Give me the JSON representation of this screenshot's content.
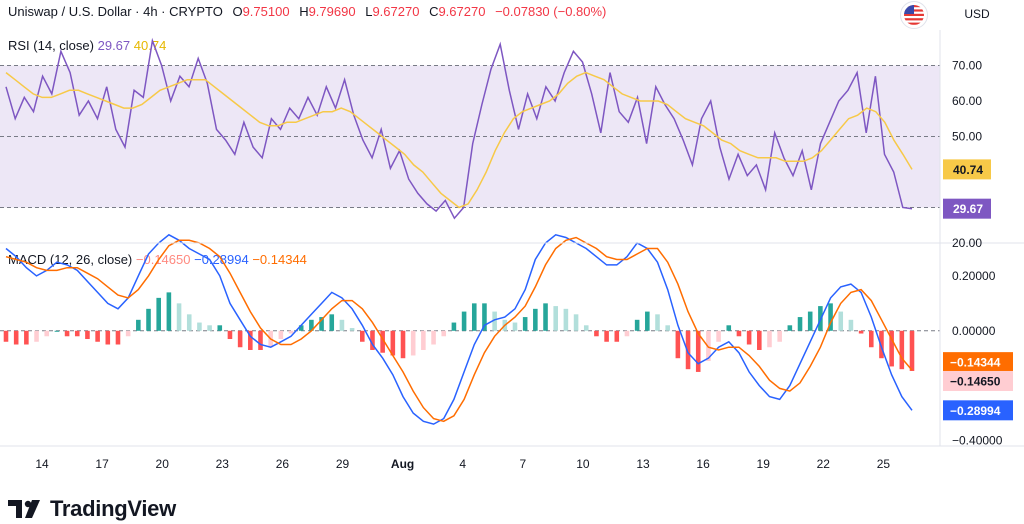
{
  "header": {
    "symbol": "Uniswap / U.S. Dollar · 4h · CRYPTO",
    "o_label": "O",
    "o_value": "9.75100",
    "h_label": "H",
    "h_value": "9.79690",
    "l_label": "L",
    "l_value": "9.67270",
    "c_label": "C",
    "c_value": "9.67270",
    "change": "−0.07830 (−0.80%)",
    "currency": "USD"
  },
  "colors": {
    "rsi": "#7e57c2",
    "rsi_ma": "#f7c948",
    "macd": "#2962ff",
    "signal": "#ff6d00",
    "hist_pos_strong": "#26a69a",
    "hist_pos_weak": "#b2dfdb",
    "hist_neg_strong": "#ff5252",
    "hist_neg_weak": "#ffcdd2",
    "rsi_band": "#ede7f6"
  },
  "chart_data": [
    {
      "type": "line",
      "panel": "RSI",
      "legend": {
        "name": "RSI (14, close)",
        "value1": "29.67",
        "value2": "40.74"
      },
      "ylim": [
        20,
        80
      ],
      "y_ticks": [
        "70.00",
        "60.00",
        "50.00",
        "20.00"
      ],
      "band": [
        30,
        70
      ],
      "levels": [
        70,
        50,
        30
      ],
      "last_labels": {
        "rsi": "29.67",
        "ma": "40.74"
      },
      "x_ticks": [
        "14",
        "17",
        "20",
        "23",
        "26",
        "29",
        "Aug",
        "4",
        "7",
        "10",
        "13",
        "16",
        "19",
        "22",
        "25"
      ],
      "series": [
        {
          "role": "rsi",
          "values": [
            64,
            55,
            61,
            57,
            67,
            62,
            74,
            68,
            56,
            60,
            55,
            64,
            52,
            47,
            63,
            61,
            77,
            70,
            60,
            67,
            64,
            72,
            65,
            52,
            49,
            45,
            54,
            47,
            44,
            55,
            52,
            58,
            55,
            61,
            56,
            64,
            58,
            66,
            56,
            49,
            44,
            52,
            41,
            46,
            38,
            34,
            31,
            29,
            32,
            27,
            30,
            48,
            59,
            69,
            76,
            63,
            52,
            62,
            55,
            64,
            60,
            68,
            74,
            71,
            62,
            51,
            68,
            57,
            54,
            61,
            48,
            64,
            59,
            55,
            49,
            42,
            55,
            60,
            47,
            38,
            45,
            39,
            42,
            35,
            51,
            44,
            39,
            46,
            35,
            48,
            54,
            60,
            63,
            68,
            51,
            67,
            45,
            40,
            30,
            29.67
          ]
        },
        {
          "role": "ma",
          "values": [
            68,
            66,
            64,
            62,
            61,
            61,
            62,
            63,
            63,
            62,
            61,
            60,
            59,
            58,
            58,
            59,
            61,
            63,
            64,
            65,
            66,
            66,
            66,
            64,
            62,
            60,
            58,
            56,
            54,
            53,
            53,
            54,
            54,
            55,
            56,
            57,
            57,
            58,
            57,
            55,
            53,
            51,
            49,
            47,
            45,
            42,
            40,
            37,
            34,
            32,
            30,
            31,
            35,
            40,
            46,
            51,
            55,
            57,
            58,
            59,
            60,
            62,
            65,
            67,
            68,
            67,
            66,
            64,
            62,
            61,
            60,
            60,
            60,
            59,
            57,
            55,
            54,
            53,
            51,
            49,
            48,
            46,
            45,
            44,
            44,
            44,
            43,
            43,
            43,
            44,
            46,
            49,
            52,
            55,
            56,
            58,
            57,
            54,
            49,
            45,
            40.74
          ]
        }
      ]
    },
    {
      "type": "line",
      "panel": "MACD",
      "legend": {
        "name": "MACD (12, 26, close)",
        "value1": "−0.14650",
        "value2": "−0.28994",
        "value3": "−0.14344"
      },
      "ylim": [
        -0.42,
        0.32
      ],
      "y_ticks": [
        "0.20000",
        "0.00000",
        "−0.20000",
        "−0.40000"
      ],
      "last_labels": {
        "signal": "−0.14344",
        "hist": "−0.14650",
        "macd": "−0.28994"
      },
      "series": [
        {
          "role": "macd",
          "values": [
            0.3,
            0.27,
            0.23,
            0.2,
            0.22,
            0.25,
            0.24,
            0.22,
            0.18,
            0.14,
            0.1,
            0.08,
            0.12,
            0.2,
            0.28,
            0.32,
            0.35,
            0.33,
            0.3,
            0.28,
            0.26,
            0.2,
            0.1,
            0.04,
            -0.02,
            -0.05,
            -0.06,
            -0.04,
            -0.02,
            0.02,
            0.06,
            0.1,
            0.14,
            0.12,
            0.08,
            0.02,
            -0.05,
            -0.1,
            -0.16,
            -0.24,
            -0.3,
            -0.33,
            -0.34,
            -0.32,
            -0.25,
            -0.15,
            -0.05,
            0.02,
            0.04,
            0.05,
            0.08,
            0.15,
            0.26,
            0.32,
            0.35,
            0.34,
            0.32,
            0.3,
            0.27,
            0.24,
            0.24,
            0.27,
            0.32,
            0.3,
            0.25,
            0.15,
            0.02,
            -0.08,
            -0.12,
            -0.1,
            -0.06,
            -0.04,
            -0.08,
            -0.15,
            -0.2,
            -0.24,
            -0.25,
            -0.2,
            -0.12,
            -0.04,
            0.04,
            0.12,
            0.16,
            0.17,
            0.14,
            0.05,
            -0.06,
            -0.16,
            -0.24,
            -0.28994
          ]
        },
        {
          "role": "signal",
          "values": [
            0.27,
            0.26,
            0.25,
            0.23,
            0.22,
            0.22,
            0.23,
            0.23,
            0.21,
            0.19,
            0.16,
            0.13,
            0.12,
            0.15,
            0.2,
            0.26,
            0.31,
            0.33,
            0.33,
            0.32,
            0.3,
            0.27,
            0.21,
            0.14,
            0.07,
            0.01,
            -0.03,
            -0.05,
            -0.05,
            -0.03,
            0.0,
            0.04,
            0.08,
            0.11,
            0.11,
            0.08,
            0.03,
            -0.03,
            -0.09,
            -0.15,
            -0.22,
            -0.28,
            -0.32,
            -0.33,
            -0.31,
            -0.25,
            -0.16,
            -0.08,
            -0.02,
            0.02,
            0.05,
            0.09,
            0.16,
            0.24,
            0.3,
            0.33,
            0.34,
            0.32,
            0.3,
            0.27,
            0.26,
            0.26,
            0.28,
            0.3,
            0.3,
            0.25,
            0.17,
            0.07,
            -0.01,
            -0.06,
            -0.07,
            -0.06,
            -0.06,
            -0.09,
            -0.13,
            -0.18,
            -0.21,
            -0.22,
            -0.19,
            -0.13,
            -0.06,
            0.03,
            0.1,
            0.14,
            0.15,
            0.11,
            0.04,
            -0.03,
            -0.1,
            -0.14344
          ]
        },
        {
          "role": "hist",
          "values": [
            -0.04,
            -0.05,
            -0.05,
            -0.04,
            -0.02,
            0.0,
            -0.02,
            -0.02,
            -0.03,
            -0.04,
            -0.05,
            -0.05,
            -0.02,
            0.04,
            0.08,
            0.12,
            0.14,
            0.1,
            0.06,
            0.03,
            0.02,
            0.02,
            -0.03,
            -0.06,
            -0.07,
            -0.07,
            -0.06,
            -0.03,
            -0.01,
            0.02,
            0.04,
            0.05,
            0.06,
            0.04,
            0.01,
            -0.04,
            -0.07,
            -0.08,
            -0.09,
            -0.1,
            -0.09,
            -0.07,
            -0.05,
            -0.02,
            0.03,
            0.07,
            0.1,
            0.1,
            0.07,
            0.04,
            0.03,
            0.05,
            0.08,
            0.1,
            0.09,
            0.08,
            0.06,
            0.02,
            -0.02,
            -0.04,
            -0.04,
            -0.02,
            0.04,
            0.07,
            0.06,
            0.02,
            -0.1,
            -0.14,
            -0.15,
            -0.11,
            -0.04,
            0.02,
            -0.02,
            -0.05,
            -0.07,
            -0.06,
            -0.04,
            0.02,
            0.05,
            0.07,
            0.09,
            0.1,
            0.07,
            0.04,
            -0.01,
            -0.06,
            -0.1,
            -0.13,
            -0.14,
            -0.1465
          ]
        }
      ]
    }
  ],
  "branding": {
    "name": "TradingView"
  }
}
